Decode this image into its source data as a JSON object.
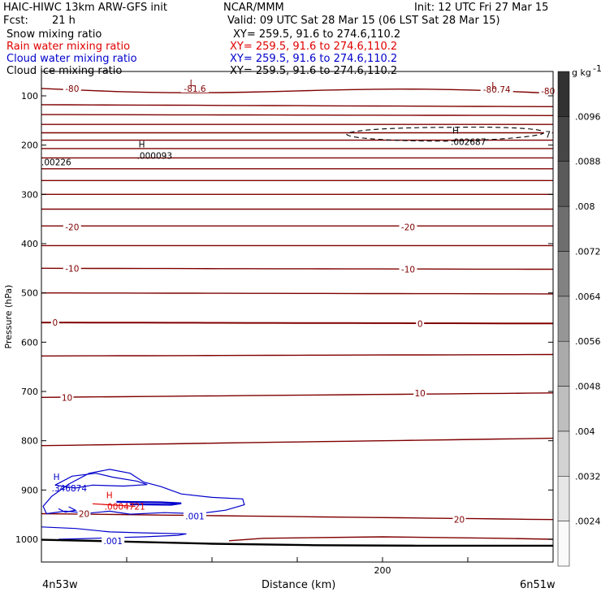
{
  "header": {
    "model": "HAIC-HIWC 13km ARW-GFS init",
    "org": "NCAR/MMM",
    "init": "Init: 12 UTC Fri 27 Mar 15",
    "fcst_label": "Fcst:",
    "fcst_value": "21 h",
    "valid": "Valid: 09 UTC Sat 28 Mar 15 (06 LST Sat 28 Mar 15)"
  },
  "fields": [
    {
      "name": "Snow mixing ratio",
      "xy": "XY= 259.5, 91.6 to 274.6,110.2",
      "color": "#000000"
    },
    {
      "name": "Rain water mixing ratio",
      "xy": "XY= 259.5, 91.6 to 274.6,110.2",
      "color": "#e00000"
    },
    {
      "name": "Cloud water mixing ratio",
      "xy": "XY= 259.5, 91.6 to 274.6,110.2",
      "color": "#0000cc"
    },
    {
      "name": "Cloud ice mixing ratio",
      "xy": "XY= 259.5, 91.6 to 274.6,110.2",
      "color": "#000000"
    }
  ],
  "chart_data": {
    "type": "contour cross-section",
    "xlabel": "Distance (km)",
    "ylabel": "Pressure (hPa)",
    "xlim": [
      0,
      300
    ],
    "ylim": [
      1030,
      60
    ],
    "x_ticks": [
      0,
      200
    ],
    "x_tick_labels": [
      "",
      "200"
    ],
    "y_ticks": [
      100,
      200,
      300,
      400,
      500,
      600,
      700,
      800,
      900,
      1000
    ],
    "x_endpoint_labels": {
      "left": "4n53w",
      "right": "6n51w"
    },
    "temperature_contour_levels": [
      -80,
      -75,
      -70,
      -65,
      -60,
      -55,
      -50,
      -45,
      -40,
      -35,
      -30,
      -25,
      -20,
      -15,
      -10,
      -5,
      0,
      5,
      10,
      15,
      20
    ],
    "temperature_contours": [
      {
        "level": -80,
        "p_left": 85,
        "p_right": 95
      },
      {
        "level": -75,
        "p_left": 118,
        "p_right": 122
      },
      {
        "level": -70,
        "p_left": 138,
        "p_right": 140
      },
      {
        "level": -65,
        "p_left": 158,
        "p_right": 158
      },
      {
        "level": -60,
        "p_left": 175,
        "p_right": 175
      },
      {
        "level": -55,
        "p_left": 190,
        "p_right": 190
      },
      {
        "level": -50,
        "p_left": 207,
        "p_right": 207
      },
      {
        "level": -45,
        "p_left": 226,
        "p_right": 226
      },
      {
        "level": -40,
        "p_left": 248,
        "p_right": 248
      },
      {
        "level": -35,
        "p_left": 272,
        "p_right": 272
      },
      {
        "level": -30,
        "p_left": 300,
        "p_right": 300
      },
      {
        "level": -25,
        "p_left": 330,
        "p_right": 330
      },
      {
        "level": -20,
        "p_left": 364,
        "p_right": 364
      },
      {
        "level": -15,
        "p_left": 404,
        "p_right": 404
      },
      {
        "level": -10,
        "p_left": 450,
        "p_right": 452
      },
      {
        "level": -5,
        "p_left": 500,
        "p_right": 502
      },
      {
        "level": 0,
        "p_left": 560,
        "p_right": 562
      },
      {
        "level": 5,
        "p_left": 628,
        "p_right": 625
      },
      {
        "level": 10,
        "p_left": 712,
        "p_right": 703
      },
      {
        "level": 15,
        "p_left": 810,
        "p_right": 795
      },
      {
        "level": 20,
        "p_left": 948,
        "p_right": 960
      }
    ],
    "contour_labels": [
      {
        "text": "-80",
        "x": 18,
        "p": 85,
        "color": "#800000"
      },
      {
        "text": "-81.6",
        "x": 90,
        "p": 85,
        "color": "#800000"
      },
      {
        "text": "-80.74",
        "x": 267,
        "p": 87,
        "color": "#800000"
      },
      {
        "text": "-80",
        "x": 297,
        "p": 90,
        "color": "#800000"
      },
      {
        "text": "-20",
        "x": 18,
        "p": 366,
        "color": "#800000"
      },
      {
        "text": "-20",
        "x": 215,
        "p": 366,
        "color": "#800000"
      },
      {
        "text": "-10",
        "x": 18,
        "p": 450,
        "color": "#800000"
      },
      {
        "text": "-10",
        "x": 215,
        "p": 452,
        "color": "#800000"
      },
      {
        "text": "0",
        "x": 8,
        "p": 560,
        "color": "#800000"
      },
      {
        "text": "0",
        "x": 222,
        "p": 562,
        "color": "#800000"
      },
      {
        "text": "10",
        "x": 15,
        "p": 712,
        "color": "#800000"
      },
      {
        "text": "10",
        "x": 222,
        "p": 703,
        "color": "#800000"
      },
      {
        "text": "20",
        "x": 25,
        "p": 948,
        "color": "#800000"
      },
      {
        "text": "20",
        "x": 245,
        "p": 960,
        "color": "#800000"
      },
      {
        "text": ".001",
        "x": 90,
        "p": 953,
        "color": "#0000cc"
      },
      {
        "text": ".001",
        "x": 42,
        "p": 1003,
        "color": "#0000cc"
      },
      {
        "text": "7",
        "x": 297,
        "p": 178,
        "color": "#000000"
      }
    ],
    "extrema": [
      {
        "type": "L",
        "x": 86,
        "p": 75,
        "value": "",
        "color": "#800000"
      },
      {
        "type": "L",
        "x": 263,
        "p": 80,
        "value": "",
        "color": "#800000"
      },
      {
        "type": "H",
        "x": 240,
        "p": 172,
        "value": ".002687",
        "color": "#000000"
      },
      {
        "type": "H",
        "x": 56,
        "p": 200,
        "value": ".000093",
        "color": "#000000"
      },
      {
        "type": "",
        "x": 0,
        "p": 213,
        "value": ".00226",
        "color": "#000000"
      },
      {
        "type": "H",
        "x": 6,
        "p": 875,
        "value": ".346874",
        "color": "#0000cc"
      },
      {
        "type": "H",
        "x": 37,
        "p": 912,
        "value": ".0004721",
        "color": "#e00000"
      }
    ],
    "colorbar": {
      "unit": "g kg",
      "unit_exp": "-1",
      "levels": [
        ".0024",
        ".0032",
        ".004",
        ".0048",
        ".0056",
        ".0064",
        ".0072",
        ".008",
        ".0088",
        ".0096"
      ]
    }
  }
}
